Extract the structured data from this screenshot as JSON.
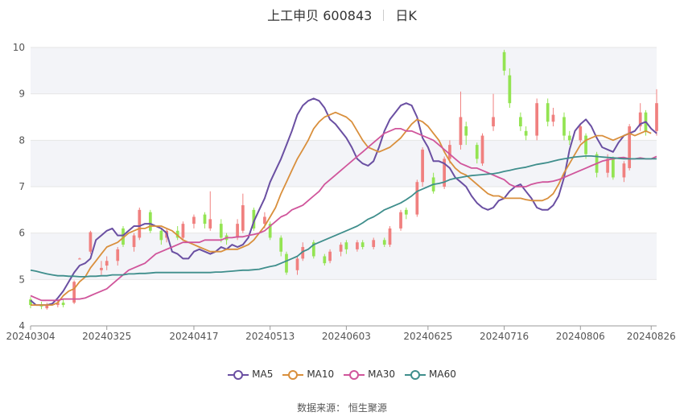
{
  "header": {
    "title": "上工申贝 600843",
    "period": "日K"
  },
  "source": "数据来源： 恒生聚源",
  "colors": {
    "up": "#f0807f",
    "down": "#93e452",
    "grid": "#e6e6e6",
    "band": "#f3f4f8"
  },
  "chart_data": {
    "type": "candlestick",
    "y_ticks": [
      4,
      5,
      6,
      7,
      8,
      9,
      10
    ],
    "ylim": [
      4,
      10
    ],
    "x_labels": [
      "20240304",
      "20240325",
      "20240417",
      "20240513",
      "20240603",
      "20240625",
      "20240716",
      "20240806",
      "20240826"
    ],
    "x_label_index": [
      0,
      14,
      30,
      44,
      58,
      73,
      87,
      101,
      114
    ],
    "candles": [
      {
        "o": 4.57,
        "c": 4.45,
        "h": 4.62,
        "l": 4.38
      },
      {
        "o": 4.46,
        "c": 4.42,
        "h": 4.52,
        "l": 4.36
      },
      {
        "o": 4.38,
        "c": 4.46,
        "h": 4.5,
        "l": 4.35
      },
      {
        "o": 4.45,
        "c": 4.5,
        "h": 4.56,
        "l": 4.4
      },
      {
        "o": 4.5,
        "c": 4.45,
        "h": 4.58,
        "l": 4.4
      },
      {
        "o": 4.5,
        "c": 4.95,
        "h": 4.98,
        "l": 4.47
      },
      {
        "o": 5.45,
        "c": 5.45,
        "h": 5.47,
        "l": 5.43
      },
      {
        "o": 5.6,
        "c": 6.02,
        "h": 6.05,
        "l": 5.55
      },
      {
        "o": 5.2,
        "c": 5.25,
        "h": 5.4,
        "l": 5.1
      },
      {
        "o": 5.3,
        "c": 5.4,
        "h": 5.5,
        "l": 5.2
      },
      {
        "o": 5.4,
        "c": 5.65,
        "h": 5.7,
        "l": 5.3
      },
      {
        "o": 6.1,
        "c": 5.75,
        "h": 6.15,
        "l": 5.7
      },
      {
        "o": 5.7,
        "c": 5.95,
        "h": 6.0,
        "l": 5.6
      },
      {
        "o": 5.9,
        "c": 6.5,
        "h": 6.55,
        "l": 5.85
      },
      {
        "o": 6.45,
        "c": 6.05,
        "h": 6.5,
        "l": 6.0
      },
      {
        "o": 6.05,
        "c": 5.85,
        "h": 6.1,
        "l": 5.75
      },
      {
        "o": 5.9,
        "c": 6.05,
        "h": 6.1,
        "l": 5.8
      },
      {
        "o": 6.05,
        "c": 5.9,
        "h": 6.15,
        "l": 5.85
      },
      {
        "o": 5.9,
        "c": 6.2,
        "h": 6.25,
        "l": 5.85
      },
      {
        "o": 6.2,
        "c": 6.35,
        "h": 6.4,
        "l": 6.1
      },
      {
        "o": 6.4,
        "c": 6.2,
        "h": 6.45,
        "l": 6.1
      },
      {
        "o": 6.1,
        "c": 6.3,
        "h": 6.9,
        "l": 6.05
      },
      {
        "o": 6.2,
        "c": 5.9,
        "h": 6.3,
        "l": 5.8
      },
      {
        "o": 5.95,
        "c": 5.85,
        "h": 6.0,
        "l": 5.75
      },
      {
        "o": 5.9,
        "c": 6.2,
        "h": 6.3,
        "l": 5.85
      },
      {
        "o": 6.05,
        "c": 6.6,
        "h": 6.85,
        "l": 6.0
      },
      {
        "o": 6.5,
        "c": 6.1,
        "h": 6.55,
        "l": 6.05
      },
      {
        "o": 6.2,
        "c": 6.35,
        "h": 6.45,
        "l": 6.1
      },
      {
        "o": 6.2,
        "c": 5.9,
        "h": 6.25,
        "l": 5.85
      },
      {
        "o": 5.9,
        "c": 5.6,
        "h": 5.95,
        "l": 5.5
      },
      {
        "o": 5.55,
        "c": 5.15,
        "h": 5.6,
        "l": 5.1
      },
      {
        "o": 5.2,
        "c": 5.45,
        "h": 5.5,
        "l": 5.1
      },
      {
        "o": 5.45,
        "c": 5.7,
        "h": 5.8,
        "l": 5.4
      },
      {
        "o": 5.8,
        "c": 5.5,
        "h": 5.85,
        "l": 5.45
      },
      {
        "o": 5.5,
        "c": 5.35,
        "h": 5.55,
        "l": 5.3
      },
      {
        "o": 5.4,
        "c": 5.6,
        "h": 5.65,
        "l": 5.35
      },
      {
        "o": 5.6,
        "c": 5.75,
        "h": 5.8,
        "l": 5.5
      },
      {
        "o": 5.8,
        "c": 5.65,
        "h": 5.85,
        "l": 5.55
      },
      {
        "o": 5.65,
        "c": 5.8,
        "h": 5.85,
        "l": 5.6
      },
      {
        "o": 5.8,
        "c": 5.7,
        "h": 5.85,
        "l": 5.65
      },
      {
        "o": 5.7,
        "c": 5.85,
        "h": 5.9,
        "l": 5.65
      },
      {
        "o": 5.85,
        "c": 5.75,
        "h": 5.9,
        "l": 5.7
      },
      {
        "o": 5.75,
        "c": 6.1,
        "h": 6.15,
        "l": 5.7
      },
      {
        "o": 6.1,
        "c": 6.45,
        "h": 6.5,
        "l": 6.05
      },
      {
        "o": 6.5,
        "c": 6.4,
        "h": 6.55,
        "l": 6.3
      },
      {
        "o": 6.4,
        "c": 7.1,
        "h": 7.15,
        "l": 6.35
      },
      {
        "o": 7.1,
        "c": 7.8,
        "h": 7.85,
        "l": 7.0
      },
      {
        "o": 7.2,
        "c": 6.9,
        "h": 7.3,
        "l": 6.85
      },
      {
        "o": 7.0,
        "c": 7.6,
        "h": 7.65,
        "l": 6.95
      },
      {
        "o": 7.6,
        "c": 7.9,
        "h": 8.0,
        "l": 7.5
      },
      {
        "o": 7.9,
        "c": 8.5,
        "h": 9.05,
        "l": 7.8
      },
      {
        "o": 8.3,
        "c": 8.1,
        "h": 8.4,
        "l": 7.9
      },
      {
        "o": 7.9,
        "c": 7.6,
        "h": 7.95,
        "l": 7.5
      },
      {
        "o": 7.5,
        "c": 8.1,
        "h": 8.15,
        "l": 7.45
      },
      {
        "o": 8.3,
        "c": 8.5,
        "h": 9.0,
        "l": 8.2
      },
      {
        "o": 9.9,
        "c": 9.5,
        "h": 9.95,
        "l": 9.4
      },
      {
        "o": 9.4,
        "c": 8.8,
        "h": 9.55,
        "l": 8.7
      },
      {
        "o": 8.5,
        "c": 8.3,
        "h": 8.6,
        "l": 8.2
      },
      {
        "o": 8.2,
        "c": 8.1,
        "h": 8.3,
        "l": 8.0
      },
      {
        "o": 8.1,
        "c": 8.8,
        "h": 8.9,
        "l": 8.0
      },
      {
        "o": 8.8,
        "c": 8.4,
        "h": 8.9,
        "l": 8.3
      },
      {
        "o": 8.4,
        "c": 8.55,
        "h": 8.7,
        "l": 8.3
      },
      {
        "o": 8.5,
        "c": 8.1,
        "h": 8.6,
        "l": 8.0
      },
      {
        "o": 8.1,
        "c": 8.0,
        "h": 8.2,
        "l": 7.9
      },
      {
        "o": 8.0,
        "c": 8.3,
        "h": 8.35,
        "l": 7.95
      },
      {
        "o": 8.1,
        "c": 7.7,
        "h": 8.15,
        "l": 7.6
      },
      {
        "o": 7.7,
        "c": 7.3,
        "h": 7.75,
        "l": 7.2
      },
      {
        "o": 7.3,
        "c": 7.6,
        "h": 7.7,
        "l": 7.2
      },
      {
        "o": 7.6,
        "c": 7.2,
        "h": 7.65,
        "l": 7.15
      },
      {
        "o": 7.2,
        "c": 7.5,
        "h": 7.55,
        "l": 7.1
      },
      {
        "o": 7.4,
        "c": 8.3,
        "h": 8.35,
        "l": 7.35
      },
      {
        "o": 8.3,
        "c": 8.6,
        "h": 8.8,
        "l": 8.2
      },
      {
        "o": 8.6,
        "c": 8.2,
        "h": 8.65,
        "l": 8.1
      },
      {
        "o": 8.2,
        "c": 8.8,
        "h": 9.1,
        "l": 8.1
      }
    ],
    "series": [
      {
        "name": "MA5",
        "color": "#6a4fa2",
        "values": [
          4.55,
          4.45,
          4.45,
          4.45,
          4.48,
          4.6,
          4.75,
          4.95,
          5.15,
          5.3,
          5.35,
          5.45,
          5.85,
          5.95,
          6.05,
          6.1,
          5.95,
          5.95,
          6.05,
          6.15,
          6.15,
          6.2,
          6.2,
          6.15,
          6.1,
          6.0,
          5.6,
          5.55,
          5.45,
          5.45,
          5.6,
          5.65,
          5.6,
          5.55,
          5.6,
          5.7,
          5.65,
          5.75,
          5.7,
          5.75,
          5.9,
          6.25,
          6.5,
          6.75,
          7.1,
          7.35,
          7.6,
          7.9,
          8.2,
          8.55,
          8.75,
          8.85,
          8.9,
          8.85,
          8.7,
          8.45,
          8.35,
          8.2,
          8.05,
          7.85,
          7.6,
          7.5,
          7.45,
          7.55,
          7.85,
          8.2,
          8.45,
          8.6,
          8.75,
          8.8,
          8.75,
          8.5,
          8.05,
          7.85,
          7.55,
          7.55,
          7.5,
          7.4,
          7.2,
          7.1,
          7.0,
          6.8,
          6.65,
          6.55,
          6.5,
          6.55,
          6.7,
          6.75,
          6.9,
          7.0,
          7.05,
          6.9,
          6.75,
          6.55,
          6.5,
          6.5,
          6.6,
          6.8,
          7.2,
          7.8,
          8.2,
          8.35,
          8.45,
          8.3,
          8.05,
          7.85,
          7.8,
          7.75,
          7.95,
          8.1,
          8.15,
          8.2,
          8.35,
          8.4,
          8.25,
          8.15
        ]
      },
      {
        "name": "MA10",
        "color": "#d98f3c",
        "values": [
          4.45,
          4.45,
          4.45,
          4.45,
          4.45,
          4.5,
          4.65,
          4.75,
          4.8,
          4.95,
          5.05,
          5.25,
          5.4,
          5.55,
          5.7,
          5.75,
          5.8,
          5.9,
          6.0,
          6.05,
          6.1,
          6.1,
          6.15,
          6.15,
          6.15,
          6.1,
          6.05,
          5.95,
          5.85,
          5.8,
          5.75,
          5.7,
          5.65,
          5.6,
          5.6,
          5.6,
          5.65,
          5.65,
          5.65,
          5.7,
          5.75,
          5.85,
          6.0,
          6.15,
          6.35,
          6.55,
          6.85,
          7.1,
          7.35,
          7.6,
          7.8,
          8.0,
          8.25,
          8.4,
          8.5,
          8.55,
          8.6,
          8.55,
          8.5,
          8.4,
          8.2,
          8.0,
          7.85,
          7.8,
          7.75,
          7.8,
          7.85,
          7.95,
          8.05,
          8.2,
          8.35,
          8.45,
          8.4,
          8.3,
          8.15,
          8.0,
          7.75,
          7.55,
          7.4,
          7.3,
          7.25,
          7.15,
          7.05,
          6.95,
          6.85,
          6.8,
          6.8,
          6.75,
          6.75,
          6.75,
          6.75,
          6.72,
          6.7,
          6.7,
          6.7,
          6.75,
          6.85,
          7.05,
          7.3,
          7.5,
          7.7,
          7.9,
          8.0,
          8.05,
          8.1,
          8.1,
          8.05,
          8.0,
          8.05,
          8.1,
          8.15,
          8.1,
          8.15,
          8.2,
          8.15
        ]
      },
      {
        "name": "MA30",
        "color": "#d0559b",
        "values": [
          4.65,
          4.6,
          4.55,
          4.55,
          4.55,
          4.55,
          4.58,
          4.58,
          4.58,
          4.58,
          4.6,
          4.65,
          4.7,
          4.75,
          4.8,
          4.9,
          5.0,
          5.1,
          5.2,
          5.25,
          5.3,
          5.35,
          5.45,
          5.55,
          5.6,
          5.65,
          5.7,
          5.75,
          5.8,
          5.8,
          5.8,
          5.8,
          5.85,
          5.85,
          5.85,
          5.85,
          5.9,
          5.9,
          5.92,
          5.92,
          5.95,
          5.97,
          6.0,
          6.05,
          6.15,
          6.25,
          6.35,
          6.4,
          6.5,
          6.55,
          6.6,
          6.7,
          6.8,
          6.9,
          7.05,
          7.15,
          7.25,
          7.35,
          7.45,
          7.55,
          7.65,
          7.75,
          7.85,
          7.95,
          8.05,
          8.15,
          8.2,
          8.25,
          8.25,
          8.2,
          8.2,
          8.15,
          8.1,
          8.05,
          8.0,
          7.9,
          7.8,
          7.7,
          7.6,
          7.5,
          7.45,
          7.4,
          7.4,
          7.35,
          7.3,
          7.25,
          7.2,
          7.15,
          7.05,
          7.0,
          7.0,
          7.0,
          7.05,
          7.08,
          7.1,
          7.1,
          7.12,
          7.15,
          7.2,
          7.25,
          7.3,
          7.35,
          7.4,
          7.45,
          7.5,
          7.55,
          7.58,
          7.6,
          7.62,
          7.63,
          7.6,
          7.6,
          7.62,
          7.6,
          7.6,
          7.65
        ]
      },
      {
        "name": "MA60",
        "color": "#3f8e8c",
        "values": [
          5.2,
          5.18,
          5.15,
          5.12,
          5.1,
          5.08,
          5.08,
          5.07,
          5.07,
          5.06,
          5.06,
          5.07,
          5.07,
          5.08,
          5.08,
          5.1,
          5.1,
          5.1,
          5.12,
          5.12,
          5.13,
          5.13,
          5.14,
          5.15,
          5.15,
          5.15,
          5.15,
          5.15,
          5.15,
          5.15,
          5.15,
          5.15,
          5.15,
          5.15,
          5.16,
          5.16,
          5.17,
          5.18,
          5.19,
          5.2,
          5.2,
          5.21,
          5.22,
          5.25,
          5.28,
          5.3,
          5.35,
          5.4,
          5.45,
          5.5,
          5.6,
          5.65,
          5.75,
          5.8,
          5.85,
          5.9,
          5.95,
          6.0,
          6.05,
          6.1,
          6.15,
          6.22,
          6.3,
          6.35,
          6.42,
          6.5,
          6.55,
          6.6,
          6.65,
          6.72,
          6.8,
          6.9,
          6.95,
          7.0,
          7.05,
          7.07,
          7.1,
          7.15,
          7.18,
          7.2,
          7.22,
          7.24,
          7.25,
          7.26,
          7.27,
          7.28,
          7.3,
          7.33,
          7.35,
          7.38,
          7.4,
          7.42,
          7.45,
          7.48,
          7.5,
          7.52,
          7.55,
          7.58,
          7.6,
          7.62,
          7.64,
          7.65,
          7.66,
          7.66,
          7.65,
          7.64,
          7.63,
          7.62,
          7.61,
          7.6,
          7.6,
          7.6,
          7.6,
          7.6,
          7.6,
          7.6
        ]
      }
    ],
    "legend": [
      {
        "name": "MA5",
        "color": "#6a4fa2"
      },
      {
        "name": "MA10",
        "color": "#d98f3c"
      },
      {
        "name": "MA30",
        "color": "#d0559b"
      },
      {
        "name": "MA60",
        "color": "#3f8e8c"
      }
    ]
  }
}
